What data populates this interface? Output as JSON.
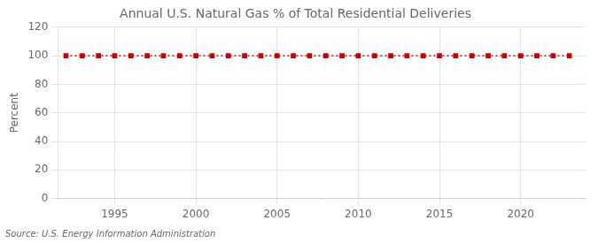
{
  "chart_data": {
    "type": "line",
    "title": "Annual U.S. Natural Gas % of Total Residential Deliveries",
    "ylabel": "Percent",
    "source": "Source: U.S. Energy Information Administration",
    "x": [
      1992,
      1993,
      1994,
      1995,
      1996,
      1997,
      1998,
      1999,
      2000,
      2001,
      2002,
      2003,
      2004,
      2005,
      2006,
      2007,
      2008,
      2009,
      2010,
      2011,
      2012,
      2013,
      2014,
      2015,
      2016,
      2017,
      2018,
      2019,
      2020,
      2021,
      2022,
      2023
    ],
    "values": [
      100,
      100,
      100,
      100,
      100,
      100,
      100,
      100,
      100,
      100,
      100,
      100,
      100,
      100,
      100,
      100,
      100,
      100,
      100,
      100,
      100,
      100,
      100,
      100,
      100,
      100,
      100,
      100,
      100,
      100,
      100,
      100
    ],
    "color": "#CC0000",
    "marker": "square",
    "line_style": "dotted",
    "xlim": [
      1991.5,
      2024
    ],
    "ylim": [
      0,
      120
    ],
    "xticks": [
      1995,
      2000,
      2005,
      2010,
      2015,
      2020
    ],
    "yticks": [
      0,
      20,
      40,
      60,
      80,
      100,
      120
    ],
    "grid": true
  }
}
